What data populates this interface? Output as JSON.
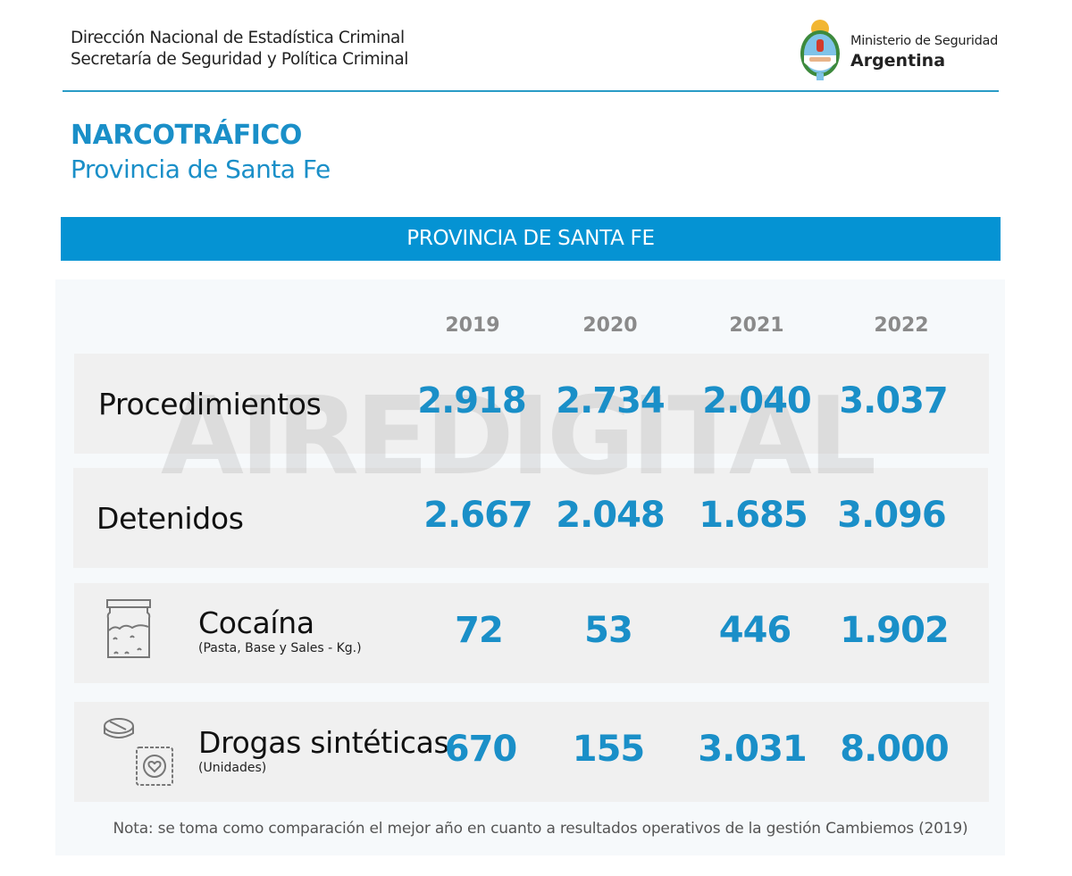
{
  "header": {
    "line1": "Dirección Nacional de Estadística Criminal",
    "line2": "Secretaría de Seguridad y Política Criminal",
    "ministry_line1": "Ministerio de Seguridad",
    "ministry_line2": "Argentina"
  },
  "title": "NARCOTRÁFICO",
  "subtitle": "Provincia de Santa Fe",
  "banner": "PROVINCIA DE SANTA FE",
  "years": [
    "2019",
    "2020",
    "2021",
    "2022"
  ],
  "rows": [
    {
      "label": "Procedimientos",
      "values": [
        "2.918",
        "2.734",
        "2.040",
        "3.037"
      ]
    },
    {
      "label": "Detenidos",
      "values": [
        "2.667",
        "2.048",
        "1.685",
        "3.096"
      ]
    },
    {
      "label": "Cocaína",
      "sublabel": "(Pasta, Base y Sales - Kg.)",
      "icon": "jar-icon",
      "values": [
        "72",
        "53",
        "446",
        "1.902"
      ]
    },
    {
      "label": "Drogas sintéticas",
      "sublabel": "(Unidades)",
      "icon": "pill-icon",
      "values": [
        "670",
        "155",
        "3.031",
        "8.000"
      ]
    }
  ],
  "watermark": "AIREDIGITAL",
  "note": "Nota: se toma como comparación el mejor año en cuanto a resultados operativos de la gestión Cambiemos (2019)",
  "colors": {
    "accent": "#1a8fc8",
    "banner": "#0593d3"
  }
}
